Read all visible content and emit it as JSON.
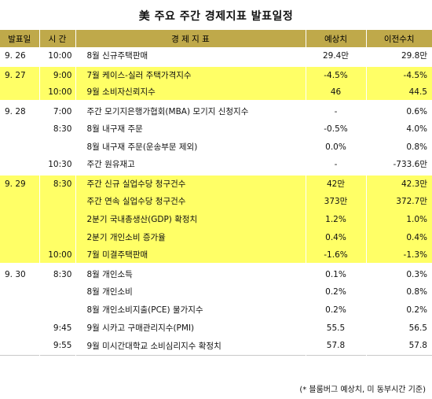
{
  "title": "美 주요 주간 경제지표 발표일정",
  "header": {
    "date": "발표일",
    "time": "시 간",
    "indicator": "경 제 지 표",
    "expected": "예상치",
    "previous": "이전수치"
  },
  "rows": [
    {
      "date": "9. 26",
      "time": "10:00",
      "indicator": "8월 신규주택판매",
      "expected": "29.4만",
      "previous": "29.8만"
    },
    {
      "date": "9. 27",
      "time": "9:00",
      "indicator": "7월 케이스-실러 주택가격지수",
      "expected": "-4.5%",
      "previous": "-4.5%"
    },
    {
      "date": "",
      "time": "10:00",
      "indicator": "9월 소비자신뢰지수",
      "expected": "46",
      "previous": "44.5"
    },
    {
      "date": "9. 28",
      "time": "7:00",
      "indicator": "주간 모기지은행가협회(MBA) 모기지 신청지수",
      "expected": "-",
      "previous": "0.6%"
    },
    {
      "date": "",
      "time": "8:30",
      "indicator": "8월 내구재 주문",
      "expected": "-0.5%",
      "previous": "4.0%"
    },
    {
      "date": "",
      "time": "",
      "indicator": "8월 내구재 주문(운송부문 제외)",
      "expected": "0.0%",
      "previous": "0.8%"
    },
    {
      "date": "",
      "time": "10:30",
      "indicator": "주간 원유재고",
      "expected": "-",
      "previous": "-733.6만"
    },
    {
      "date": "9. 29",
      "time": "8:30",
      "indicator": "주간 신규 실업수당 청구건수",
      "expected": "42만",
      "previous": "42.3만"
    },
    {
      "date": "",
      "time": "",
      "indicator": "주간 연속 실업수당 청구건수",
      "expected": "373만",
      "previous": "372.7만"
    },
    {
      "date": "",
      "time": "",
      "indicator": "2분기 국내총생산(GDP) 확정치",
      "expected": "1.2%",
      "previous": "1.0%"
    },
    {
      "date": "",
      "time": "",
      "indicator": "2분기 개인소비 증가율",
      "expected": "0.4%",
      "previous": "0.4%"
    },
    {
      "date": "",
      "time": "10:00",
      "indicator": "7월 미결주택판매",
      "expected": "-1.6%",
      "previous": "-1.3%"
    },
    {
      "date": "9. 30",
      "time": "8:30",
      "indicator": "8월 개인소득",
      "expected": "0.1%",
      "previous": "0.3%"
    },
    {
      "date": "",
      "time": "",
      "indicator": "8월 개인소비",
      "expected": "0.2%",
      "previous": "0.8%"
    },
    {
      "date": "",
      "time": "",
      "indicator": "8월 개인소비지출(PCE) 물가지수",
      "expected": "0.2%",
      "previous": "0.2%"
    },
    {
      "date": "",
      "time": "9:45",
      "indicator": "9월 시카고 구매관리지수(PMI)",
      "expected": "55.5",
      "previous": "56.5"
    },
    {
      "date": "",
      "time": "9:55",
      "indicator": "9월 미시간대학교 소비심리지수 확정치",
      "expected": "57.8",
      "previous": "57.8"
    }
  ],
  "footnote": "(* 블룸버그 예상치, 미 동부시간 기준)",
  "colors": {
    "header_bg": "#bfa94a",
    "highlight": "#ffff66"
  }
}
